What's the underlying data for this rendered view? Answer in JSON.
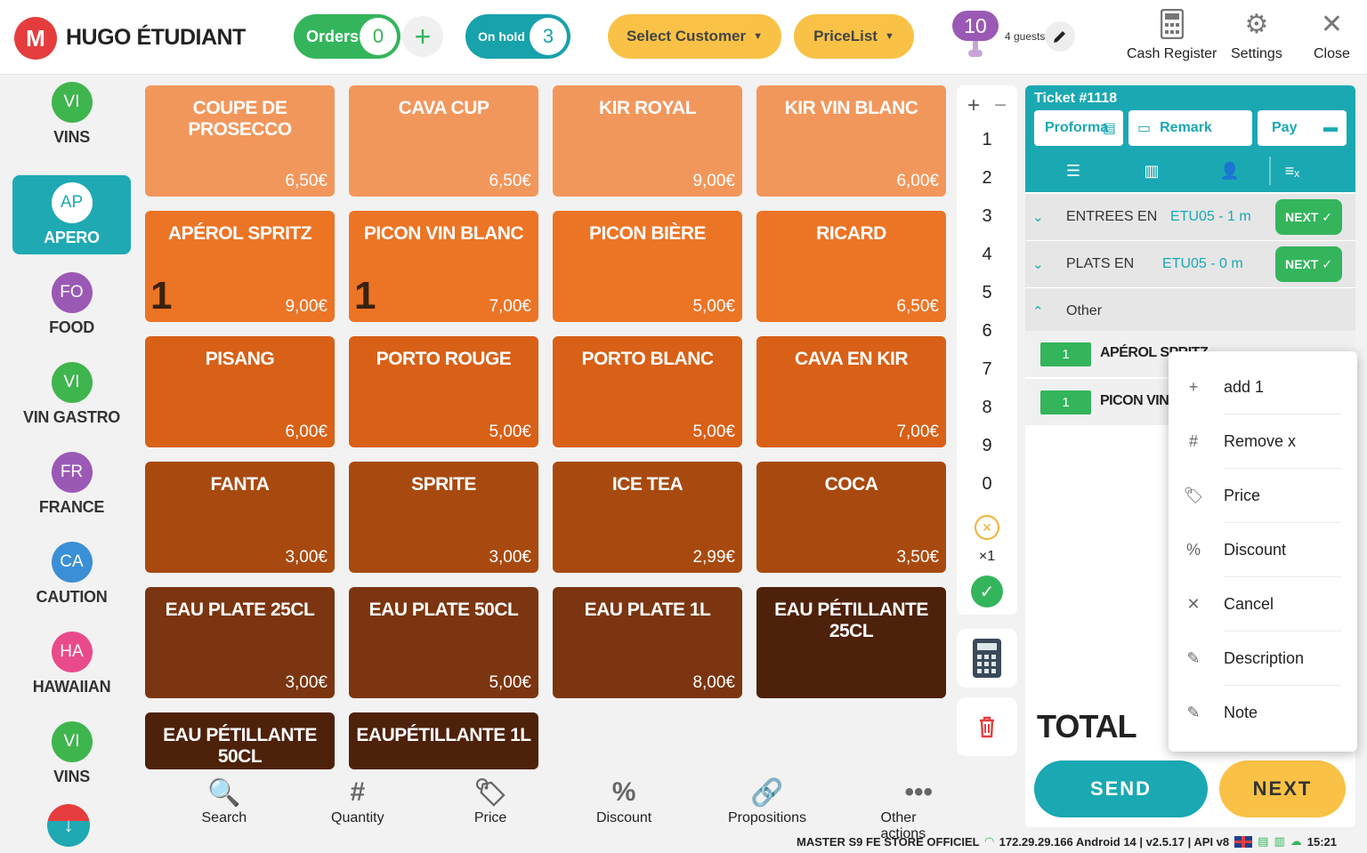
{
  "header": {
    "logo_letter": "M",
    "brand": "HUGO ÉTUDIANT",
    "orders_label": "Orders",
    "orders_count": "0",
    "add_order": "+",
    "on_hold_label": "On hold",
    "on_hold_count": "3",
    "select_customer": "Select Customer",
    "pricelist": "PriceList",
    "guests_count": "10",
    "guests_label": "4 guests",
    "cash_register": "Cash Register",
    "settings": "Settings",
    "close": "Close"
  },
  "categories": [
    {
      "abbr": "VI",
      "label": "VINS",
      "color": "#3fb54e"
    },
    {
      "abbr": "AP",
      "label": "APERO",
      "color": "#1fa9b3",
      "active": true
    },
    {
      "abbr": "FO",
      "label": "FOOD",
      "color": "#9b59b6"
    },
    {
      "abbr": "VI",
      "label": "VIN GASTRO",
      "color": "#3fb54e"
    },
    {
      "abbr": "FR",
      "label": "FRANCE",
      "color": "#9b59b6"
    },
    {
      "abbr": "CA",
      "label": "CAUTION",
      "color": "#3b8fd6"
    },
    {
      "abbr": "HA",
      "label": "HAWAIIAN",
      "color": "#e94b8a"
    },
    {
      "abbr": "VI",
      "label": "VINS",
      "color": "#3fb54e"
    }
  ],
  "products": [
    {
      "name": "COUPE DE PROSECCO",
      "price": "6,50€",
      "color": "#f2975c"
    },
    {
      "name": "CAVA CUP",
      "price": "6,50€",
      "color": "#f2975c"
    },
    {
      "name": "KIR ROYAL",
      "price": "9,00€",
      "color": "#f2975c"
    },
    {
      "name": "KIR VIN BLANC",
      "price": "6,00€",
      "color": "#f2975c"
    },
    {
      "name": "APÉROL SPRITZ",
      "price": "9,00€",
      "qty": "1",
      "color": "#ec7425"
    },
    {
      "name": "PICON VIN BLANC",
      "price": "7,00€",
      "qty": "1",
      "color": "#ec7425"
    },
    {
      "name": "PICON BIÈRE",
      "price": "5,00€",
      "color": "#ec7425"
    },
    {
      "name": "RICARD",
      "price": "6,50€",
      "color": "#ec7425"
    },
    {
      "name": "PISANG",
      "price": "6,00€",
      "color": "#d86017"
    },
    {
      "name": "PORTO ROUGE",
      "price": "5,00€",
      "color": "#d86017"
    },
    {
      "name": "PORTO BLANC",
      "price": "5,00€",
      "color": "#d86017"
    },
    {
      "name": "CAVA EN KIR",
      "price": "7,00€",
      "color": "#d86017"
    },
    {
      "name": "FANTA",
      "price": "3,00€",
      "color": "#a84a10"
    },
    {
      "name": "SPRITE",
      "price": "3,00€",
      "color": "#a84a10"
    },
    {
      "name": "ICE TEA",
      "price": "2,99€",
      "color": "#a84a10"
    },
    {
      "name": "COCA",
      "price": "3,50€",
      "color": "#a84a10"
    },
    {
      "name": "EAU PLATE 25CL",
      "price": "3,00€",
      "color": "#7b3510"
    },
    {
      "name": "EAU PLATE 50CL",
      "price": "5,00€",
      "color": "#7b3510"
    },
    {
      "name": "EAU PLATE 1L",
      "price": "8,00€",
      "color": "#7b3510"
    },
    {
      "name": "EAU PÉTILLANTE 25CL",
      "price": "",
      "color": "#4e210b"
    },
    {
      "name": "EAU PÉTILLANTE 50CL",
      "price": "",
      "color": "#4e210b"
    },
    {
      "name": "EAUPÉTILLANTE 1L",
      "price": "",
      "color": "#4e210b"
    }
  ],
  "numpad": {
    "plus": "+",
    "minus": "−",
    "digits": [
      "1",
      "2",
      "3",
      "4",
      "5",
      "6",
      "7",
      "8",
      "9",
      "0"
    ],
    "multiplier": "×1"
  },
  "ticket": {
    "title": "Ticket #1118",
    "proforma": "Proforma",
    "remark": "Remark",
    "pay": "Pay",
    "groups": [
      {
        "name": "ENTREES EN",
        "meta": "ETU05 - 1 m",
        "next": "NEXT ✓"
      },
      {
        "name": "PLATS EN",
        "meta": "ETU05 - 0 m",
        "next": "NEXT ✓"
      }
    ],
    "other_label": "Other",
    "lines": [
      {
        "qty": "1",
        "name": "APÉROL SPRITZ"
      },
      {
        "qty": "1",
        "name": "PICON VIN BLANC"
      }
    ],
    "total_label": "TOTAL"
  },
  "actions": {
    "send": "SEND",
    "next": "NEXT"
  },
  "line_menu": [
    {
      "icon": "+",
      "label": "add 1"
    },
    {
      "icon": "#",
      "label": "Remove x"
    },
    {
      "icon": "🏷",
      "label": "Price"
    },
    {
      "icon": "%",
      "label": "Discount"
    },
    {
      "icon": "✕",
      "label": "Cancel"
    },
    {
      "icon": "✎",
      "label": "Description"
    },
    {
      "icon": "✎",
      "label": "Note"
    }
  ],
  "bottom_bar": [
    {
      "icon": "🔍",
      "label": "Search"
    },
    {
      "icon": "#",
      "label": "Quantity"
    },
    {
      "icon": "🏷",
      "label": "Price"
    },
    {
      "icon": "%",
      "label": "Discount"
    },
    {
      "icon": "🔗",
      "label": "Propositions"
    },
    {
      "icon": "•••",
      "label": "Other actions"
    }
  ],
  "status_bar": {
    "store": "MASTER S9 FE STORE OFFICIEL",
    "info": "172.29.29.166  Android 14  |  v2.5.17 | API v8",
    "time": "15:21"
  }
}
